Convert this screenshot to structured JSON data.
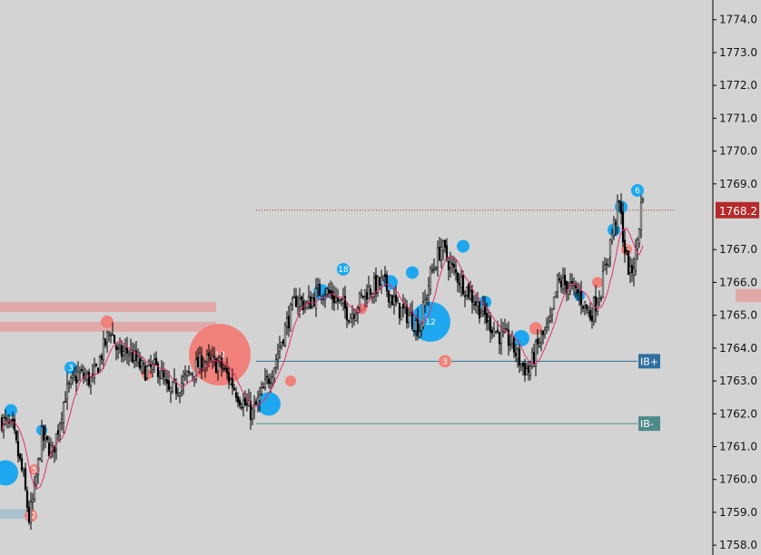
{
  "chart_data": {
    "type": "candlestick",
    "ylim": [
      1757.7,
      1774.6
    ],
    "y_ticks": [
      {
        "value": 1774.0,
        "label": "1774.0"
      },
      {
        "value": 1773.0,
        "label": "1773.0"
      },
      {
        "value": 1772.0,
        "label": "1772.0"
      },
      {
        "value": 1771.0,
        "label": "1771.0"
      },
      {
        "value": 1770.0,
        "label": "1770.0"
      },
      {
        "value": 1769.0,
        "label": "1769.0"
      },
      {
        "value": 1767.0,
        "label": "1767.0"
      },
      {
        "value": 1766.0,
        "label": "1766.0"
      },
      {
        "value": 1765.0,
        "label": "1765.0"
      },
      {
        "value": 1764.0,
        "label": "1764.0"
      },
      {
        "value": 1763.0,
        "label": "1763.0"
      },
      {
        "value": 1762.0,
        "label": "1762.0"
      },
      {
        "value": 1761.0,
        "label": "1761.0"
      },
      {
        "value": 1760.0,
        "label": "1760.0"
      },
      {
        "value": 1759.0,
        "label": "1759.0"
      },
      {
        "value": 1758.0,
        "label": "1758.0"
      }
    ],
    "current_price": {
      "value": 1768.2,
      "label": "1768.2",
      "color": "#b52a2a"
    },
    "levels": [
      {
        "label": "IB+",
        "value": 1763.6,
        "color": "#2f6f9f"
      },
      {
        "label": "IB-",
        "value": 1761.7,
        "color": "#4e8a8a"
      }
    ],
    "anchors": [
      [
        0,
        1761.8
      ],
      [
        6,
        1761.5
      ],
      [
        12,
        1760.0
      ],
      [
        15,
        1758.8
      ],
      [
        18,
        1759.6
      ],
      [
        22,
        1761.3
      ],
      [
        28,
        1760.8
      ],
      [
        35,
        1762.6
      ],
      [
        42,
        1763.2
      ],
      [
        50,
        1763.0
      ],
      [
        56,
        1764.0
      ],
      [
        60,
        1764.6
      ],
      [
        64,
        1763.8
      ],
      [
        70,
        1763.9
      ],
      [
        78,
        1763.3
      ],
      [
        86,
        1763.4
      ],
      [
        92,
        1762.6
      ],
      [
        100,
        1763.0
      ],
      [
        110,
        1763.6
      ],
      [
        120,
        1763.5
      ],
      [
        126,
        1763.0
      ],
      [
        132,
        1762.4
      ],
      [
        138,
        1762.0
      ],
      [
        144,
        1762.7
      ],
      [
        150,
        1763.5
      ],
      [
        156,
        1764.6
      ],
      [
        162,
        1765.5
      ],
      [
        168,
        1765.3
      ],
      [
        176,
        1765.8
      ],
      [
        184,
        1765.5
      ],
      [
        192,
        1765.0
      ],
      [
        200,
        1765.7
      ],
      [
        210,
        1766.0
      ],
      [
        218,
        1765.2
      ],
      [
        224,
        1765.0
      ],
      [
        230,
        1764.6
      ],
      [
        236,
        1766.2
      ],
      [
        242,
        1767.1
      ],
      [
        248,
        1766.4
      ],
      [
        256,
        1765.8
      ],
      [
        262,
        1765.3
      ],
      [
        268,
        1764.8
      ],
      [
        274,
        1764.4
      ],
      [
        280,
        1764.2
      ],
      [
        286,
        1763.5
      ],
      [
        290,
        1763.3
      ],
      [
        296,
        1764.2
      ],
      [
        302,
        1764.7
      ],
      [
        306,
        1766.0
      ],
      [
        312,
        1765.9
      ],
      [
        318,
        1765.6
      ],
      [
        324,
        1765.0
      ],
      [
        330,
        1765.8
      ],
      [
        336,
        1767.5
      ],
      [
        340,
        1768.4
      ],
      [
        343,
        1767.0
      ],
      [
        346,
        1766.2
      ],
      [
        349,
        1766.8
      ],
      [
        353,
        1768.8
      ]
    ],
    "bubbles": [
      {
        "i": 2,
        "price": 1760.2,
        "size": 14,
        "kind": "bid",
        "label": ""
      },
      {
        "i": 5,
        "price": 1762.1,
        "size": 7,
        "kind": "bid",
        "label": ""
      },
      {
        "i": 16,
        "price": 1758.9,
        "size": 7,
        "kind": "ask",
        "label": "12"
      },
      {
        "i": 18,
        "price": 1760.3,
        "size": 6,
        "kind": "ask",
        "label": "5"
      },
      {
        "i": 22,
        "price": 1761.5,
        "size": 6,
        "kind": "bid",
        "label": ""
      },
      {
        "i": 38,
        "price": 1763.4,
        "size": 7,
        "kind": "bid",
        "label": "3"
      },
      {
        "i": 58,
        "price": 1764.8,
        "size": 7,
        "kind": "ask",
        "label": ""
      },
      {
        "i": 80,
        "price": 1763.2,
        "size": 6,
        "kind": "ask",
        "label": ""
      },
      {
        "i": 120,
        "price": 1763.8,
        "size": 34,
        "kind": "ask",
        "label": "10"
      },
      {
        "i": 147,
        "price": 1762.3,
        "size": 13,
        "kind": "bid",
        "label": ""
      },
      {
        "i": 159,
        "price": 1763.0,
        "size": 6,
        "kind": "ask",
        "label": ""
      },
      {
        "i": 176,
        "price": 1765.7,
        "size": 9,
        "kind": "bid",
        "label": ""
      },
      {
        "i": 188,
        "price": 1766.4,
        "size": 7,
        "kind": "bid",
        "label": "18"
      },
      {
        "i": 198,
        "price": 1765.2,
        "size": 6,
        "kind": "ask",
        "label": ""
      },
      {
        "i": 214,
        "price": 1766.0,
        "size": 8,
        "kind": "bid",
        "label": ""
      },
      {
        "i": 226,
        "price": 1766.3,
        "size": 7,
        "kind": "bid",
        "label": ""
      },
      {
        "i": 236,
        "price": 1764.8,
        "size": 22,
        "kind": "bid",
        "label": "12"
      },
      {
        "i": 244,
        "price": 1763.6,
        "size": 7,
        "kind": "ask",
        "label": "3"
      },
      {
        "i": 254,
        "price": 1767.1,
        "size": 7,
        "kind": "bid",
        "label": ""
      },
      {
        "i": 266,
        "price": 1765.4,
        "size": 7,
        "kind": "bid",
        "label": ""
      },
      {
        "i": 286,
        "price": 1764.3,
        "size": 9,
        "kind": "bid",
        "label": ""
      },
      {
        "i": 294,
        "price": 1764.6,
        "size": 7,
        "kind": "ask",
        "label": ""
      },
      {
        "i": 318,
        "price": 1765.6,
        "size": 6,
        "kind": "bid",
        "label": ""
      },
      {
        "i": 328,
        "price": 1766.0,
        "size": 6,
        "kind": "ask",
        "label": ""
      },
      {
        "i": 337,
        "price": 1767.6,
        "size": 7,
        "kind": "bid",
        "label": ""
      },
      {
        "i": 341,
        "price": 1768.3,
        "size": 7,
        "kind": "bid",
        "label": "5"
      },
      {
        "i": 344,
        "price": 1767.0,
        "size": 6,
        "kind": "ask",
        "label": "5"
      },
      {
        "i": 350,
        "price": 1768.8,
        "size": 7,
        "kind": "bid",
        "label": "6"
      }
    ],
    "zones": [
      {
        "price_top": 1765.4,
        "price_bottom": 1765.1,
        "color": "#e2a3a3",
        "from": "left",
        "to": 118
      },
      {
        "price_top": 1764.8,
        "price_bottom": 1764.5,
        "color": "#e2a3a3",
        "from": "left",
        "to": 118
      },
      {
        "price_top": 1759.1,
        "price_bottom": 1758.8,
        "color": "#a5bfcc",
        "from": "left",
        "to": 18
      },
      {
        "price_top": 1765.8,
        "price_bottom": 1765.4,
        "color": "#e2a3a3",
        "from": 404,
        "to": 510
      }
    ],
    "colors": {
      "bid": "#1ea7ee",
      "ask": "#f0817b",
      "ma": "#e0306b",
      "axis": "#000000"
    }
  }
}
